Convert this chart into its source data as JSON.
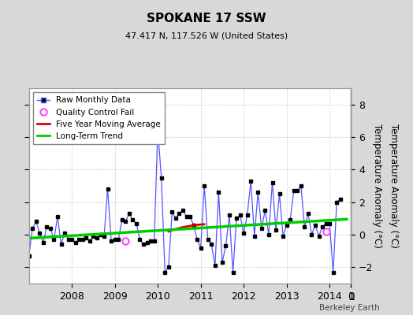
{
  "title": "SPOKANE 17 SSW",
  "subtitle": "47.417 N, 117.526 W (United States)",
  "ylabel": "Temperature Anomaly (°C)",
  "credit": "Berkeley Earth",
  "ylim": [
    -3,
    9
  ],
  "yticks": [
    -2,
    0,
    2,
    4,
    6,
    8
  ],
  "xlim": [
    2007.0,
    2014.5
  ],
  "xticks": [
    2008,
    2009,
    2010,
    2011,
    2012,
    2013,
    2014
  ],
  "bg_color": "#d8d8d8",
  "plot_bg_color": "#ffffff",
  "raw_color": "#5555ff",
  "dot_color": "#000000",
  "ma_color": "#dd0000",
  "trend_color": "#00cc00",
  "qc_color": "#ff44ff",
  "raw_data_x": [
    2007.0,
    2007.083,
    2007.167,
    2007.25,
    2007.333,
    2007.417,
    2007.5,
    2007.583,
    2007.667,
    2007.75,
    2007.833,
    2007.917,
    2008.0,
    2008.083,
    2008.167,
    2008.25,
    2008.333,
    2008.417,
    2008.5,
    2008.583,
    2008.667,
    2008.75,
    2008.833,
    2008.917,
    2009.0,
    2009.083,
    2009.167,
    2009.25,
    2009.333,
    2009.417,
    2009.5,
    2009.583,
    2009.667,
    2009.75,
    2009.833,
    2009.917,
    2010.0,
    2010.083,
    2010.167,
    2010.25,
    2010.333,
    2010.417,
    2010.5,
    2010.583,
    2010.667,
    2010.75,
    2010.833,
    2010.917,
    2011.0,
    2011.083,
    2011.167,
    2011.25,
    2011.333,
    2011.417,
    2011.5,
    2011.583,
    2011.667,
    2011.75,
    2011.833,
    2011.917,
    2012.0,
    2012.083,
    2012.167,
    2012.25,
    2012.333,
    2012.417,
    2012.5,
    2012.583,
    2012.667,
    2012.75,
    2012.833,
    2012.917,
    2013.0,
    2013.083,
    2013.167,
    2013.25,
    2013.333,
    2013.417,
    2013.5,
    2013.583,
    2013.667,
    2013.75,
    2013.833,
    2013.917,
    2014.0,
    2014.083,
    2014.167,
    2014.25
  ],
  "raw_data_y": [
    -1.3,
    0.4,
    0.8,
    0.1,
    -0.5,
    0.5,
    0.4,
    -0.3,
    1.1,
    -0.6,
    0.1,
    -0.3,
    -0.3,
    -0.5,
    -0.3,
    -0.3,
    -0.2,
    -0.4,
    -0.1,
    -0.2,
    0.0,
    -0.1,
    2.8,
    -0.4,
    -0.3,
    -0.3,
    0.9,
    0.8,
    1.3,
    0.9,
    0.7,
    -0.3,
    -0.6,
    -0.5,
    -0.4,
    -0.4,
    6.5,
    3.5,
    -2.3,
    -2.0,
    1.4,
    1.0,
    1.3,
    1.5,
    1.1,
    1.1,
    0.6,
    -0.3,
    -0.8,
    3.0,
    -0.3,
    -0.6,
    -1.9,
    2.6,
    -1.7,
    -0.7,
    1.2,
    -2.3,
    1.0,
    1.2,
    0.1,
    1.2,
    3.3,
    -0.1,
    2.6,
    0.4,
    1.5,
    0.0,
    3.2,
    0.3,
    2.5,
    -0.1,
    0.6,
    0.9,
    2.7,
    2.7,
    3.0,
    0.5,
    1.3,
    0.0,
    0.6,
    -0.1,
    0.5,
    0.7,
    0.7,
    -2.3,
    2.0,
    2.2
  ],
  "qc_fail_points": [
    [
      2009.25,
      -0.4
    ],
    [
      2013.917,
      0.2
    ]
  ],
  "moving_avg_x": [
    2010.25,
    2010.333,
    2010.417,
    2010.5,
    2010.583,
    2010.667,
    2010.75,
    2010.833,
    2010.917,
    2011.0,
    2011.083
  ],
  "moving_avg_y": [
    0.2,
    0.28,
    0.34,
    0.4,
    0.46,
    0.5,
    0.54,
    0.57,
    0.6,
    0.62,
    0.64
  ],
  "trend_x": [
    2007.0,
    2014.4
  ],
  "trend_y": [
    -0.22,
    0.95
  ]
}
